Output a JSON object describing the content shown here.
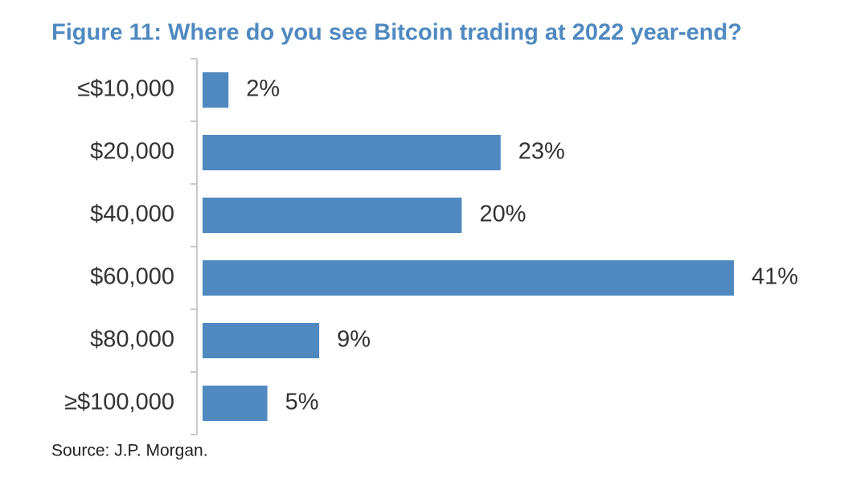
{
  "chart_data": {
    "type": "bar",
    "orientation": "horizontal",
    "title": "Figure 11: Where do you see Bitcoin trading at 2022 year-end?",
    "source": "Source: J.P. Morgan.",
    "categories": [
      "≤$10,000",
      "$20,000",
      "$40,000",
      "$60,000",
      "$80,000",
      "≥$100,000"
    ],
    "values": [
      2,
      23,
      20,
      41,
      9,
      5
    ],
    "value_labels": [
      "2%",
      "23%",
      "20%",
      "41%",
      "9%",
      "5%"
    ],
    "color": "#4f89c0"
  }
}
